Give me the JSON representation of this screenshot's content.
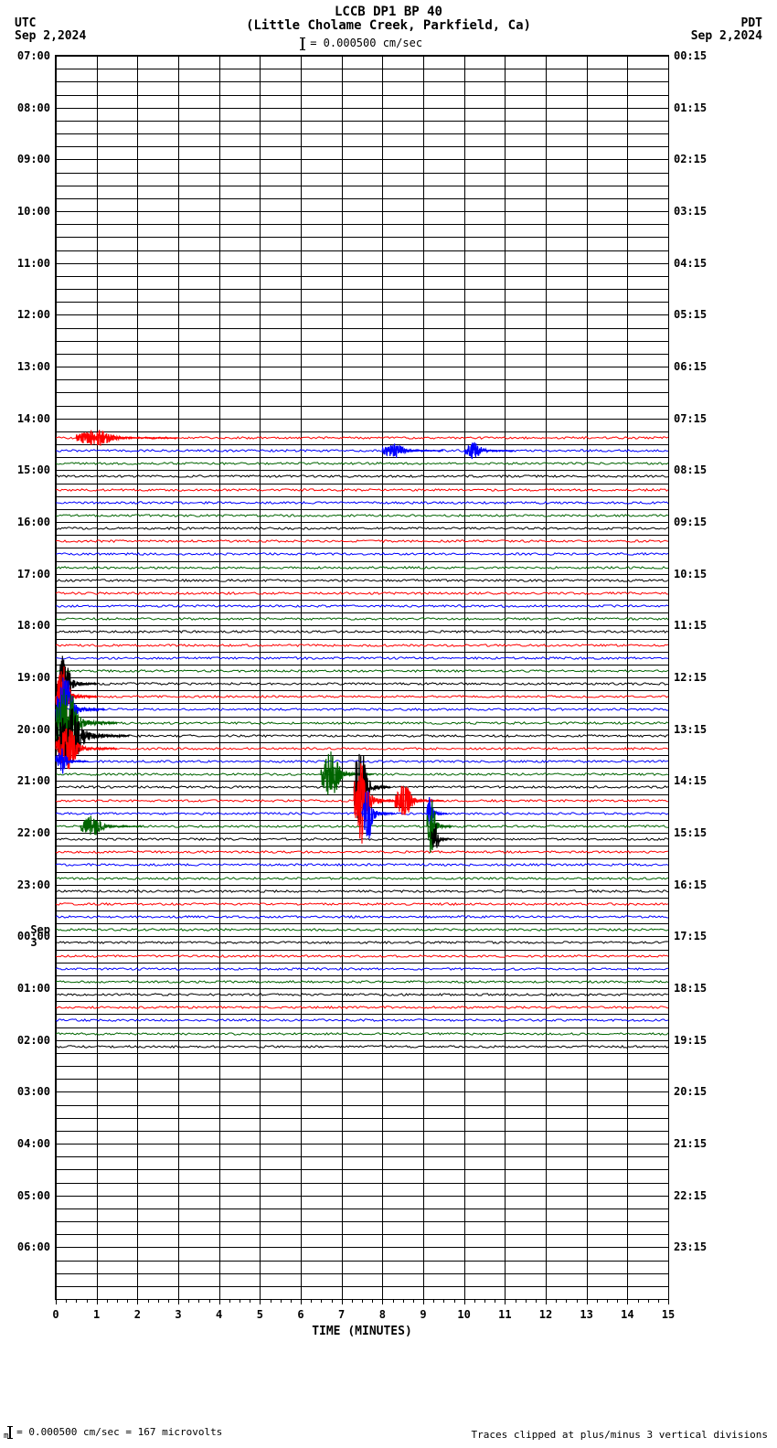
{
  "title_line1": "LCCB DP1 BP 40",
  "title_line2": "(Little Cholame Creek, Parkfield, Ca)",
  "tz_left": "UTC",
  "date_left": "Sep 2,2024",
  "tz_right": "PDT",
  "date_right": "Sep 2,2024",
  "scale_text": " = 0.000500 cm/sec",
  "footer_left": " = 0.000500 cm/sec =    167 microvolts",
  "footer_right": "Traces clipped at plus/minus 3 vertical divisions",
  "x_axis_title": "TIME (MINUTES)",
  "plot": {
    "x_min": 0,
    "x_max": 15,
    "total_rows": 96,
    "row_height": 14.166,
    "colors": {
      "black": "#000000",
      "red": "#ff0000",
      "blue": "#0000ff",
      "green": "#006400"
    },
    "color_cycle": [
      "black",
      "red",
      "blue",
      "green"
    ],
    "hour_labels_left": [
      "07:00",
      "08:00",
      "09:00",
      "10:00",
      "11:00",
      "12:00",
      "13:00",
      "14:00",
      "15:00",
      "16:00",
      "17:00",
      "18:00",
      "19:00",
      "20:00",
      "21:00",
      "22:00",
      "23:00",
      "00:00",
      "01:00",
      "02:00",
      "03:00",
      "04:00",
      "05:00",
      "06:00"
    ],
    "hour_labels_right": [
      "00:15",
      "01:15",
      "02:15",
      "03:15",
      "04:15",
      "05:15",
      "06:15",
      "07:15",
      "08:15",
      "09:15",
      "10:15",
      "11:15",
      "12:15",
      "13:15",
      "14:15",
      "15:15",
      "16:15",
      "17:15",
      "18:15",
      "19:15",
      "20:15",
      "21:15",
      "22:15",
      "23:15"
    ],
    "day_marker": {
      "label": "Sep 3",
      "before_hour_index": 17
    },
    "data_start_row": 29,
    "data_end_row": 76,
    "xticks": [
      0,
      1,
      2,
      3,
      4,
      5,
      6,
      7,
      8,
      9,
      10,
      11,
      12,
      13,
      14,
      15
    ],
    "minor_per_major": 4,
    "events": [
      {
        "row": 29,
        "start": 0.5,
        "width": 2.5,
        "amp": 8,
        "color": "red"
      },
      {
        "row": 30,
        "start": 8.0,
        "width": 1.5,
        "amp": 7,
        "color": "blue"
      },
      {
        "row": 30,
        "start": 10.0,
        "width": 1.2,
        "amp": 8,
        "color": "blue"
      },
      {
        "row": 48,
        "start": 0.0,
        "width": 1.0,
        "amp": 28,
        "color": "black"
      },
      {
        "row": 49,
        "start": 0.0,
        "width": 1.0,
        "amp": 28,
        "color": "red"
      },
      {
        "row": 50,
        "start": 0.0,
        "width": 1.2,
        "amp": 32,
        "color": "blue"
      },
      {
        "row": 51,
        "start": 0.0,
        "width": 1.5,
        "amp": 35,
        "color": "green"
      },
      {
        "row": 52,
        "start": 0.0,
        "width": 1.8,
        "amp": 30,
        "color": "black"
      },
      {
        "row": 53,
        "start": 0.0,
        "width": 1.5,
        "amp": 20,
        "color": "red"
      },
      {
        "row": 54,
        "start": 0.0,
        "width": 0.8,
        "amp": 12,
        "color": "blue"
      },
      {
        "row": 55,
        "start": 6.5,
        "width": 1.3,
        "amp": 22,
        "color": "green"
      },
      {
        "row": 56,
        "start": 7.3,
        "width": 0.9,
        "amp": 40,
        "color": "black"
      },
      {
        "row": 57,
        "start": 7.3,
        "width": 1.0,
        "amp": 40,
        "color": "red"
      },
      {
        "row": 57,
        "start": 8.3,
        "width": 1.2,
        "amp": 15,
        "color": "red"
      },
      {
        "row": 58,
        "start": 7.5,
        "width": 0.8,
        "amp": 25,
        "color": "blue"
      },
      {
        "row": 58,
        "start": 9.1,
        "width": 0.5,
        "amp": 18,
        "color": "blue"
      },
      {
        "row": 59,
        "start": 9.1,
        "width": 0.6,
        "amp": 28,
        "color": "green"
      },
      {
        "row": 60,
        "start": 9.2,
        "width": 0.5,
        "amp": 15,
        "color": "black"
      },
      {
        "row": 59,
        "start": 0.6,
        "width": 1.5,
        "amp": 10,
        "color": "green"
      }
    ]
  }
}
